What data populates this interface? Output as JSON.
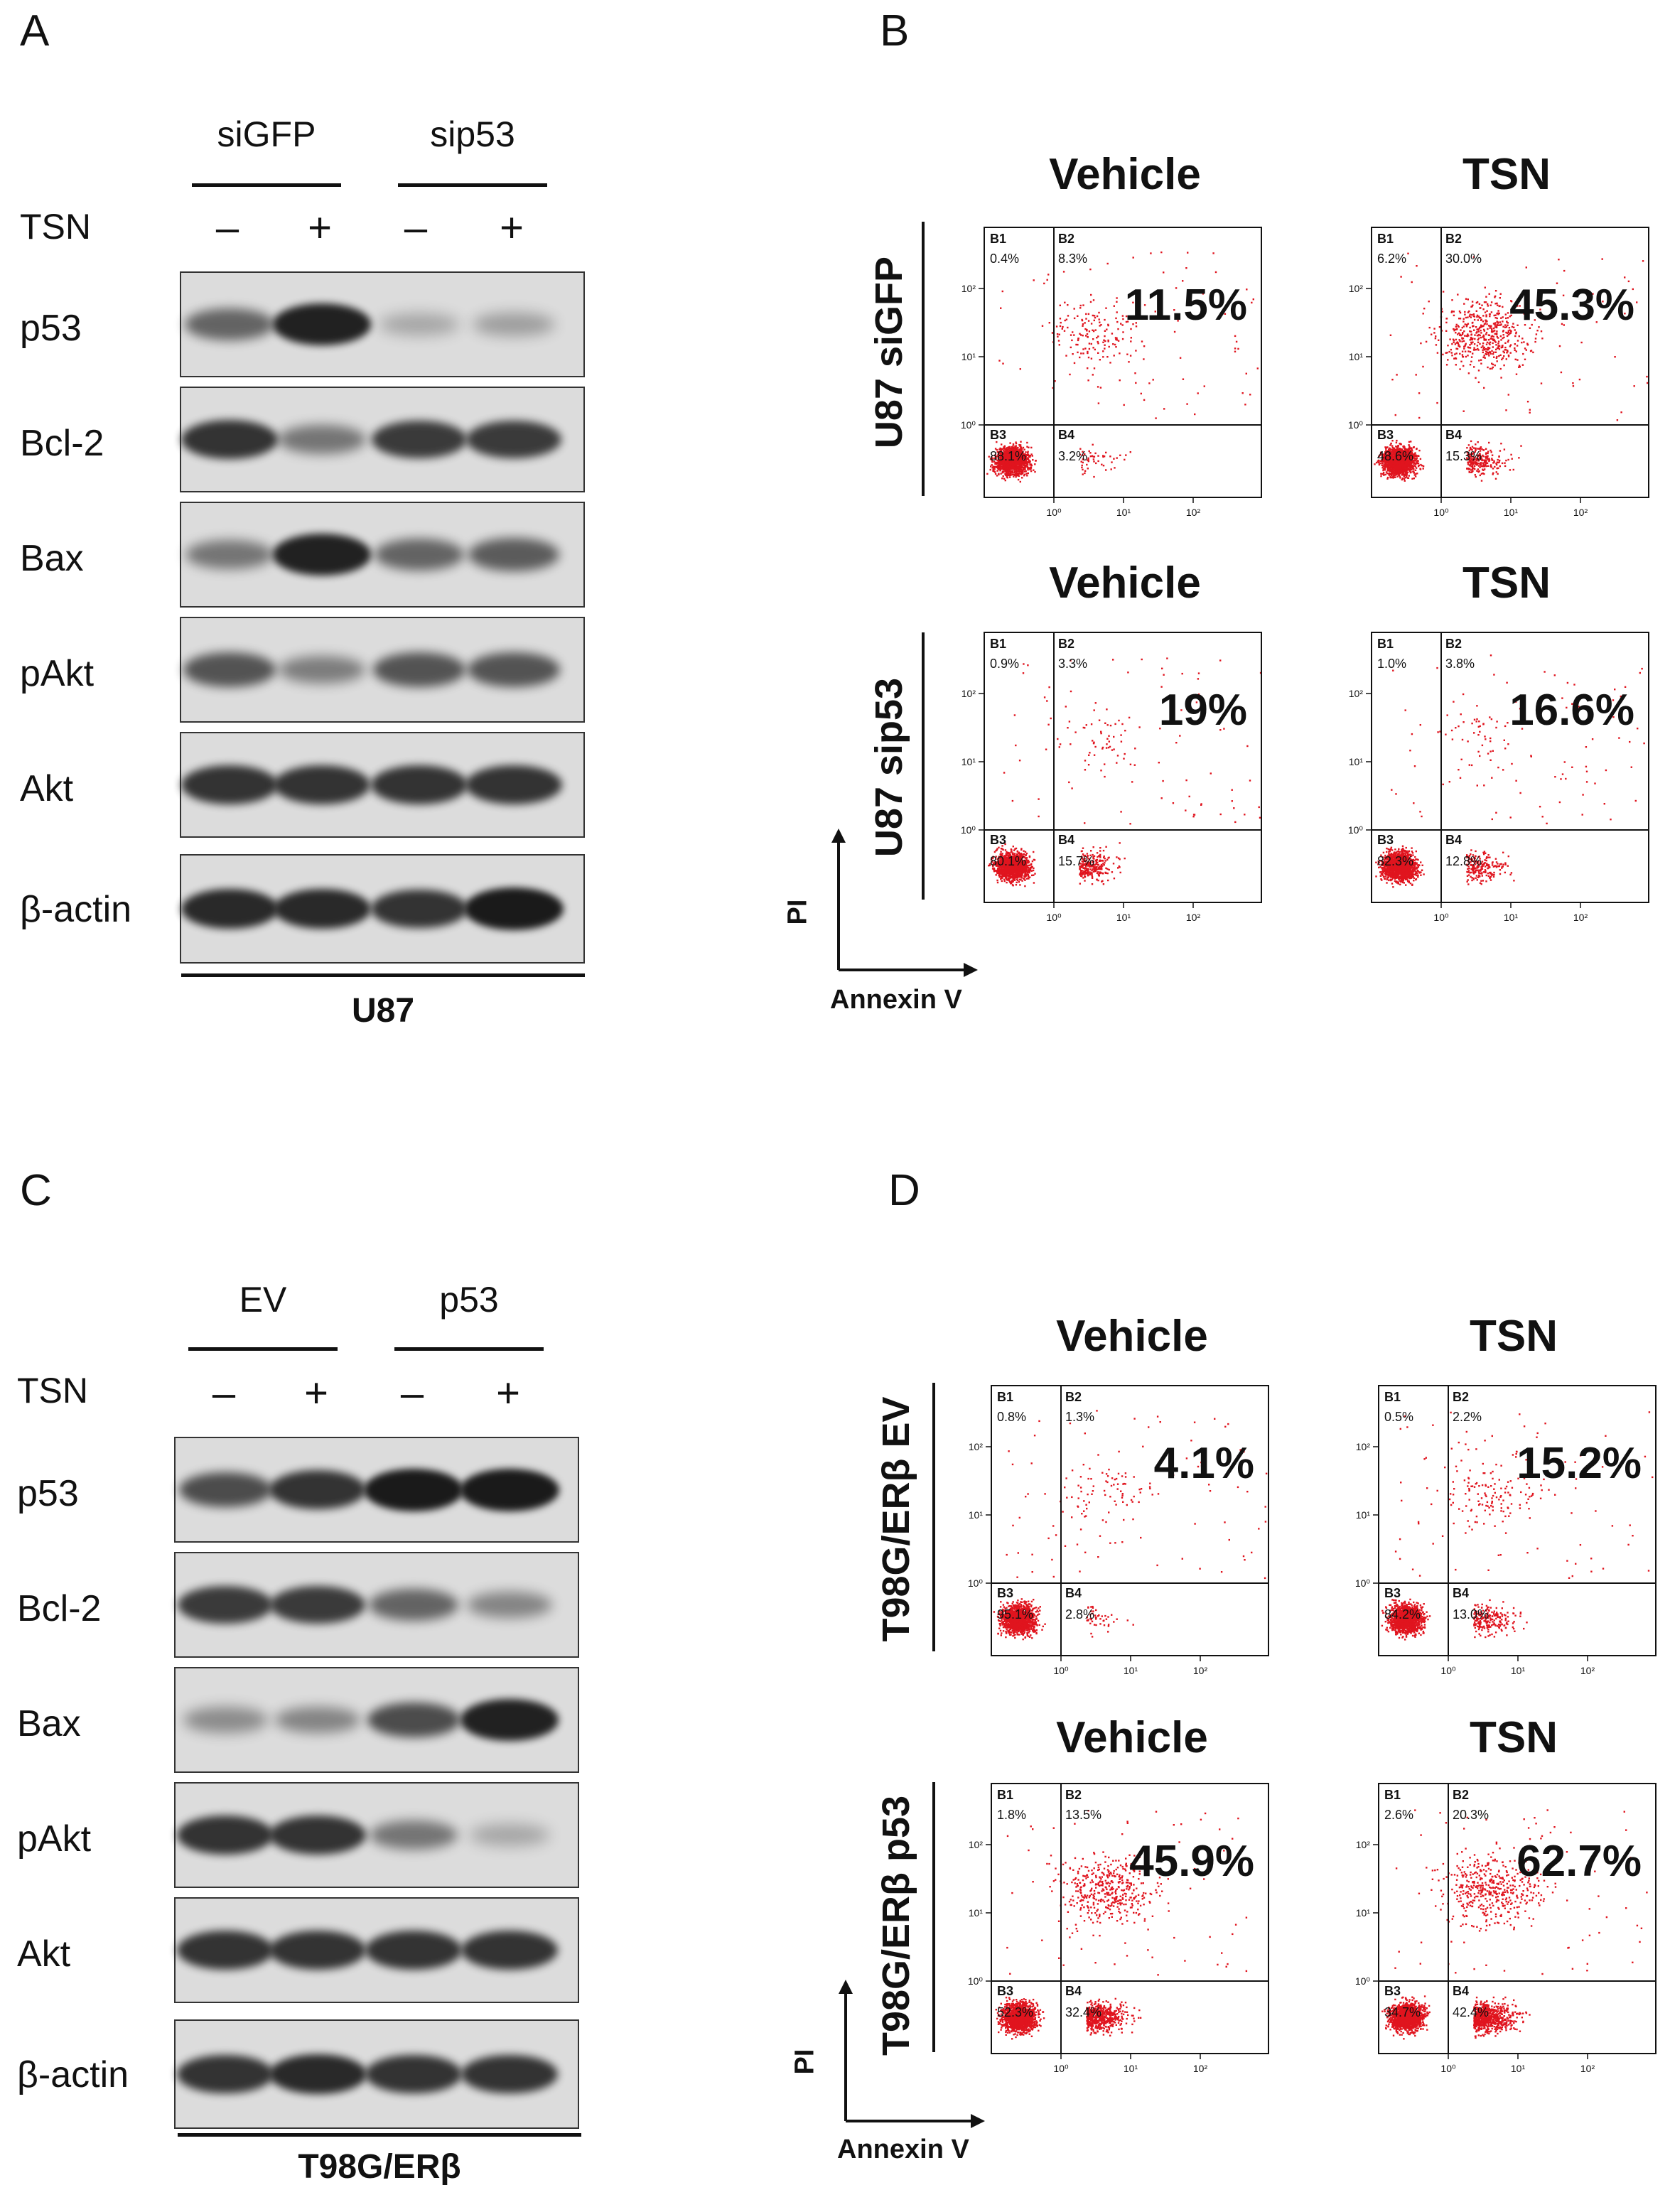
{
  "panels": {
    "A": {
      "letter": "A",
      "groups": [
        "siGFP",
        "sip53"
      ],
      "treatment_label": "TSN",
      "signs": [
        "–",
        "+",
        "–",
        "+"
      ],
      "rows": [
        {
          "label": "p53",
          "intensities": [
            0.55,
            0.95,
            0.15,
            0.2
          ]
        },
        {
          "label": "Bcl-2",
          "intensities": [
            0.85,
            0.45,
            0.8,
            0.8
          ]
        },
        {
          "label": "Bax",
          "intensities": [
            0.45,
            0.95,
            0.55,
            0.6
          ]
        },
        {
          "label": "pAkt",
          "intensities": [
            0.65,
            0.4,
            0.65,
            0.65
          ]
        },
        {
          "label": "Akt",
          "intensities": [
            0.85,
            0.85,
            0.85,
            0.85
          ]
        },
        {
          "label": "β-actin",
          "intensities": [
            0.9,
            0.9,
            0.85,
            1.0
          ]
        }
      ],
      "cell_line": "U87"
    },
    "B": {
      "letter": "B",
      "column_titles": [
        "Vehicle",
        "TSN"
      ],
      "row_labels": [
        "U87 siGFP",
        "U87 sip53"
      ],
      "plots": [
        {
          "title": "Vehicle",
          "pct": "11.5%",
          "B1": "0.4%",
          "B2": "8.3%",
          "B3": "88.1%",
          "B4": "3.2%",
          "upper_density": 0.3
        },
        {
          "title": "TSN",
          "pct": "45.3%",
          "B1": "6.2%",
          "B2": "30.0%",
          "B3": "48.6%",
          "B4": "15.3%",
          "upper_density": 1.0
        },
        {
          "title": "Vehicle",
          "pct": "19%",
          "B1": "0.9%",
          "B2": "3.3%",
          "B3": "80.1%",
          "B4": "15.7%",
          "upper_density": 0.1
        },
        {
          "title": "TSN",
          "pct": "16.6%",
          "B1": "1.0%",
          "B2": "3.8%",
          "B3": "82.3%",
          "B4": "12.8%",
          "upper_density": 0.1
        }
      ],
      "y_axis": "PI",
      "x_axis": "Annexin V"
    },
    "C": {
      "letter": "C",
      "groups": [
        "EV",
        "p53"
      ],
      "treatment_label": "TSN",
      "signs": [
        "–",
        "+",
        "–",
        "+"
      ],
      "rows": [
        {
          "label": "p53",
          "intensities": [
            0.7,
            0.85,
            1.0,
            1.0
          ]
        },
        {
          "label": "Bcl-2",
          "intensities": [
            0.8,
            0.8,
            0.55,
            0.35
          ]
        },
        {
          "label": "Bax",
          "intensities": [
            0.3,
            0.35,
            0.7,
            0.95
          ]
        },
        {
          "label": "pAkt",
          "intensities": [
            0.85,
            0.85,
            0.45,
            0.15
          ]
        },
        {
          "label": "Akt",
          "intensities": [
            0.85,
            0.85,
            0.85,
            0.85
          ]
        },
        {
          "label": "β-actin",
          "intensities": [
            0.85,
            0.9,
            0.85,
            0.85
          ]
        }
      ],
      "cell_line": "T98G/ERβ"
    },
    "D": {
      "letter": "D",
      "column_titles": [
        "Vehicle",
        "TSN"
      ],
      "row_labels": [
        "T98G/ERβ EV",
        "T98G/ERβ p53"
      ],
      "plots": [
        {
          "title": "Vehicle",
          "pct": "4.1%",
          "B1": "0.8%",
          "B2": "1.3%",
          "B3": "95.1%",
          "B4": "2.8%",
          "upper_density": 0.15
        },
        {
          "title": "TSN",
          "pct": "15.2%",
          "B1": "0.5%",
          "B2": "2.2%",
          "B3": "84.2%",
          "B4": "13.0%",
          "upper_density": 0.25
        },
        {
          "title": "Vehicle",
          "pct": "45.9%",
          "B1": "1.8%",
          "B2": "13.5%",
          "B3": "52.3%",
          "B4": "32.4%",
          "upper_density": 0.8
        },
        {
          "title": "TSN",
          "pct": "62.7%",
          "B1": "2.6%",
          "B2": "20.3%",
          "B3": "34.7%",
          "B4": "42.4%",
          "upper_density": 0.85
        }
      ],
      "y_axis": "PI",
      "x_axis": "Annexin V"
    }
  },
  "colors": {
    "dot": "#e0141e",
    "band": "#1a1a1a",
    "blot_bg": "#dcdcdc"
  }
}
